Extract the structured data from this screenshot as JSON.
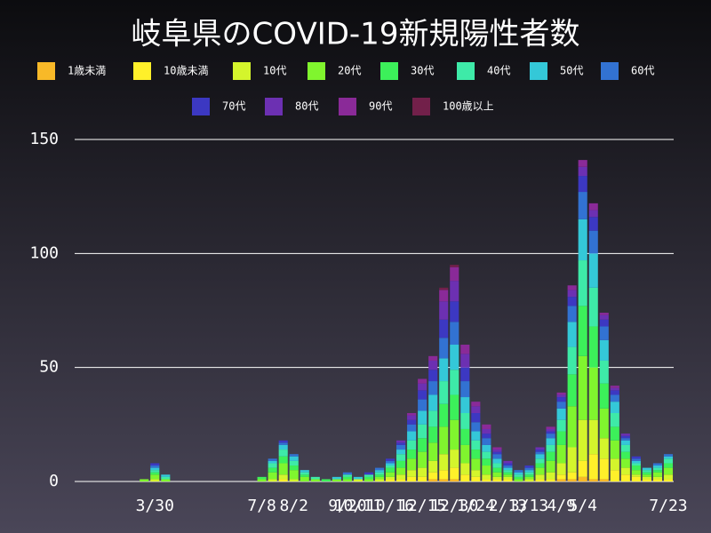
{
  "chart_data": {
    "type": "stacked-bar",
    "title": "岐阜県のCOVID-19新規陽性者数",
    "categories": [
      null,
      null,
      null,
      null,
      null,
      null,
      null,
      "3/30",
      null,
      null,
      null,
      null,
      null,
      null,
      null,
      null,
      null,
      "7/8",
      null,
      null,
      "8/2",
      null,
      null,
      null,
      null,
      "9/20",
      "10/11",
      null,
      null,
      "10/16",
      null,
      null,
      "12/15",
      null,
      null,
      "12/30",
      null,
      "1/24",
      null,
      null,
      "2/13",
      null,
      "3/13",
      null,
      null,
      "4/9",
      null,
      "5/4",
      null,
      null,
      null,
      null,
      null,
      null,
      null,
      "7/23"
    ],
    "ylim": [
      0,
      150
    ],
    "yticks": [
      0,
      50,
      100,
      150
    ],
    "grid": true,
    "series": [
      {
        "name": "1歳未満",
        "color": "#f8b928",
        "values": [
          0,
          0,
          0,
          0,
          0,
          0,
          0,
          0,
          0,
          0,
          0,
          0,
          0,
          0,
          0,
          0,
          0,
          0,
          0,
          0,
          0,
          0,
          0,
          0,
          0,
          0,
          0,
          0,
          0,
          0,
          0,
          0,
          0,
          1,
          1,
          1,
          0,
          0,
          0,
          0,
          0,
          0,
          0,
          0,
          0,
          1,
          1,
          2,
          1,
          1,
          0,
          0,
          0,
          0,
          0,
          0
        ]
      },
      {
        "name": "10歳未満",
        "color": "#fff02a",
        "values": [
          0,
          0,
          0,
          0,
          0,
          0,
          0,
          0,
          0,
          0,
          0,
          0,
          0,
          0,
          0,
          0,
          0,
          0,
          0,
          1,
          0,
          0,
          0,
          0,
          0,
          0,
          0,
          0,
          0,
          1,
          1,
          2,
          2,
          3,
          4,
          5,
          3,
          2,
          1,
          1,
          1,
          0,
          0,
          1,
          1,
          2,
          3,
          7,
          11,
          9,
          5,
          3,
          2,
          1,
          1,
          1
        ]
      },
      {
        "name": "10代",
        "color": "#d4f52c",
        "values": [
          0,
          0,
          0,
          0,
          0,
          0,
          0,
          1,
          0,
          0,
          0,
          0,
          0,
          0,
          0,
          0,
          0,
          0,
          1,
          2,
          1,
          0,
          0,
          0,
          0,
          0,
          1,
          0,
          1,
          1,
          2,
          3,
          4,
          5,
          7,
          8,
          5,
          3,
          2,
          1,
          1,
          0,
          1,
          2,
          3,
          5,
          11,
          18,
          15,
          9,
          5,
          3,
          1,
          1,
          1,
          2
        ]
      },
      {
        "name": "20代",
        "color": "#80f52e",
        "values": [
          0,
          0,
          0,
          0,
          0,
          0,
          1,
          2,
          1,
          0,
          0,
          0,
          0,
          0,
          0,
          0,
          0,
          1,
          3,
          5,
          4,
          2,
          1,
          0,
          1,
          1,
          0,
          1,
          1,
          2,
          3,
          5,
          7,
          8,
          12,
          13,
          8,
          5,
          4,
          2,
          1,
          1,
          1,
          3,
          5,
          8,
          18,
          28,
          23,
          13,
          8,
          4,
          2,
          1,
          2,
          3
        ]
      },
      {
        "name": "30代",
        "color": "#3cf05a",
        "values": [
          0,
          0,
          0,
          0,
          0,
          0,
          0,
          1,
          0,
          0,
          0,
          0,
          0,
          0,
          0,
          0,
          0,
          1,
          2,
          3,
          2,
          1,
          0,
          1,
          0,
          1,
          0,
          1,
          1,
          2,
          3,
          4,
          6,
          7,
          10,
          11,
          7,
          4,
          3,
          2,
          1,
          1,
          1,
          2,
          4,
          6,
          14,
          22,
          18,
          11,
          6,
          3,
          2,
          1,
          1,
          2
        ]
      },
      {
        "name": "40代",
        "color": "#3eeaa8",
        "values": [
          0,
          0,
          0,
          0,
          0,
          0,
          0,
          1,
          1,
          0,
          0,
          0,
          0,
          0,
          0,
          0,
          0,
          0,
          2,
          3,
          2,
          1,
          1,
          0,
          0,
          1,
          0,
          1,
          1,
          1,
          3,
          4,
          6,
          7,
          10,
          11,
          7,
          4,
          3,
          2,
          1,
          1,
          1,
          2,
          3,
          5,
          12,
          20,
          17,
          10,
          6,
          3,
          1,
          1,
          1,
          2
        ]
      },
      {
        "name": "50代",
        "color": "#34c8d8",
        "values": [
          0,
          0,
          0,
          0,
          0,
          0,
          0,
          1,
          1,
          0,
          0,
          0,
          0,
          0,
          0,
          0,
          0,
          0,
          1,
          2,
          2,
          1,
          0,
          0,
          1,
          0,
          1,
          0,
          1,
          1,
          2,
          4,
          6,
          7,
          10,
          11,
          7,
          4,
          3,
          2,
          1,
          1,
          1,
          2,
          3,
          5,
          11,
          18,
          15,
          9,
          5,
          2,
          1,
          1,
          1,
          1
        ]
      },
      {
        "name": "60代",
        "color": "#3272d2",
        "values": [
          0,
          0,
          0,
          0,
          0,
          0,
          0,
          1,
          0,
          0,
          0,
          0,
          0,
          0,
          0,
          0,
          0,
          0,
          1,
          1,
          1,
          0,
          0,
          0,
          0,
          1,
          0,
          0,
          1,
          1,
          2,
          3,
          5,
          6,
          9,
          10,
          7,
          4,
          3,
          2,
          1,
          1,
          1,
          1,
          2,
          3,
          7,
          12,
          10,
          6,
          3,
          1,
          1,
          0,
          1,
          1
        ]
      },
      {
        "name": "70代",
        "color": "#3c38c2",
        "values": [
          0,
          0,
          0,
          0,
          0,
          0,
          0,
          1,
          0,
          0,
          0,
          0,
          0,
          0,
          0,
          0,
          0,
          0,
          0,
          1,
          0,
          0,
          0,
          0,
          0,
          0,
          0,
          1,
          0,
          1,
          1,
          2,
          4,
          5,
          8,
          9,
          6,
          4,
          2,
          1,
          1,
          0,
          1,
          1,
          1,
          2,
          4,
          7,
          6,
          3,
          2,
          1,
          1,
          0,
          0,
          0
        ]
      },
      {
        "name": "80代",
        "color": "#6c30b2",
        "values": [
          0,
          0,
          0,
          0,
          0,
          0,
          0,
          0,
          0,
          0,
          0,
          0,
          0,
          0,
          0,
          0,
          0,
          0,
          0,
          0,
          0,
          0,
          0,
          0,
          0,
          0,
          0,
          0,
          0,
          0,
          1,
          2,
          3,
          4,
          8,
          9,
          6,
          3,
          2,
          1,
          1,
          0,
          0,
          1,
          1,
          1,
          3,
          4,
          3,
          2,
          1,
          1,
          0,
          0,
          0,
          0
        ]
      },
      {
        "name": "90代",
        "color": "#8a2a98",
        "values": [
          0,
          0,
          0,
          0,
          0,
          0,
          0,
          0,
          0,
          0,
          0,
          0,
          0,
          0,
          0,
          0,
          0,
          0,
          0,
          0,
          0,
          0,
          0,
          0,
          0,
          0,
          0,
          0,
          0,
          0,
          0,
          1,
          2,
          2,
          5,
          6,
          4,
          2,
          2,
          1,
          0,
          0,
          0,
          0,
          1,
          1,
          2,
          3,
          3,
          1,
          1,
          0,
          0,
          0,
          0,
          0
        ]
      },
      {
        "name": "100歳以上",
        "color": "#72204a",
        "values": [
          0,
          0,
          0,
          0,
          0,
          0,
          0,
          0,
          0,
          0,
          0,
          0,
          0,
          0,
          0,
          0,
          0,
          0,
          0,
          0,
          0,
          0,
          0,
          0,
          0,
          0,
          0,
          0,
          0,
          0,
          0,
          0,
          0,
          0,
          1,
          1,
          0,
          0,
          0,
          0,
          0,
          0,
          0,
          0,
          0,
          0,
          0,
          0,
          0,
          0,
          0,
          0,
          0,
          0,
          0,
          0
        ]
      }
    ]
  }
}
